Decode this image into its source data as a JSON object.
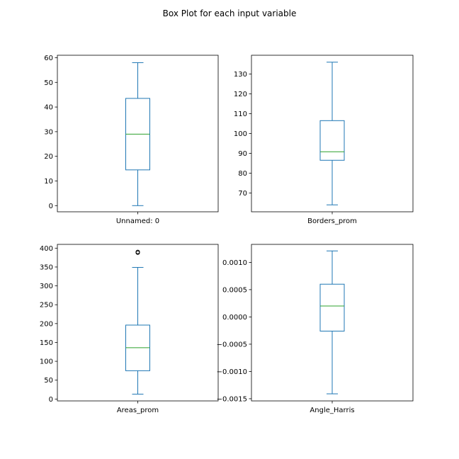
{
  "figure": {
    "title": "Box Plot for each input variable"
  },
  "colors": {
    "box": "#1f77b4",
    "median": "#2ca02c",
    "flier": "#000000"
  },
  "chart_data": [
    {
      "type": "box",
      "category": "Unnamed: 0",
      "ylim": [
        -2.5,
        61
      ],
      "yticks": [
        0,
        10,
        20,
        30,
        40,
        50,
        60
      ],
      "ytick_labels": [
        "0",
        "10",
        "20",
        "30",
        "40",
        "50",
        "60"
      ],
      "whisker_low": 0,
      "q1": 14.5,
      "median": 29,
      "q3": 43.5,
      "whisker_high": 58,
      "fliers": []
    },
    {
      "type": "box",
      "category": "Borders_prom",
      "ylim": [
        60.5,
        139.5
      ],
      "yticks": [
        70,
        80,
        90,
        100,
        110,
        120,
        130
      ],
      "ytick_labels": [
        "70",
        "80",
        "90",
        "100",
        "110",
        "120",
        "130"
      ],
      "whisker_low": 64,
      "q1": 86.5,
      "median": 90.8,
      "q3": 106.5,
      "whisker_high": 136,
      "fliers": []
    },
    {
      "type": "box",
      "category": "Areas_prom",
      "ylim": [
        -5,
        410
      ],
      "yticks": [
        0,
        50,
        100,
        150,
        200,
        250,
        300,
        350,
        400
      ],
      "ytick_labels": [
        "0",
        "50",
        "100",
        "150",
        "200",
        "250",
        "300",
        "350",
        "400"
      ],
      "whisker_low": 13,
      "q1": 75,
      "median": 136,
      "q3": 196,
      "whisker_high": 349,
      "fliers": [
        388,
        390
      ]
    },
    {
      "type": "box",
      "category": "Angle_Harris",
      "ylim": [
        -0.00154,
        0.00133
      ],
      "yticks": [
        -0.0015,
        -0.001,
        -0.0005,
        0,
        0.0005,
        0.001
      ],
      "ytick_labels": [
        "−0.0015",
        "−0.0010",
        "−0.0005",
        "0.0000",
        "0.0005",
        "0.0010"
      ],
      "whisker_low": -0.00141,
      "q1": -0.00026,
      "median": 0.0002,
      "q3": 0.0006,
      "whisker_high": 0.00121,
      "fliers": []
    }
  ]
}
